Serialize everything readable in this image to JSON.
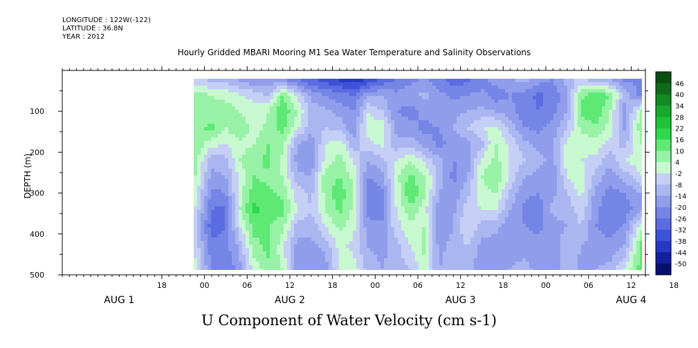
{
  "header": {
    "longitude": "LONGITUDE : 122W(-122)",
    "latitude": "LATITUDE : 36.8N",
    "year": "YEAR : 2012"
  },
  "chart_data": {
    "type": "heatmap",
    "title": "Hourly Gridded MBARI Mooring M1 Sea Water Temperature and Salinity Observations",
    "xlabel": "U Component of Water Velocity (cm s-1)",
    "ylabel": "DEPTH (m)",
    "ylim": [
      500,
      0
    ],
    "y_ticks": [
      100,
      200,
      300,
      400,
      500
    ],
    "y_tick_labels": [
      "100",
      "200",
      "300",
      "400",
      "500"
    ],
    "x_range_hours": [
      -12,
      60
    ],
    "x_hour_ticks": [
      {
        "h": -6,
        "label": "18"
      },
      {
        "h": 0,
        "label": "00"
      },
      {
        "h": 6,
        "label": "06"
      },
      {
        "h": 12,
        "label": "12"
      },
      {
        "h": 18,
        "label": "18"
      },
      {
        "h": 24,
        "label": "00"
      },
      {
        "h": 30,
        "label": "06"
      },
      {
        "h": 36,
        "label": "12"
      },
      {
        "h": 42,
        "label": "18"
      },
      {
        "h": 48,
        "label": "00"
      },
      {
        "h": 54,
        "label": "06"
      },
      {
        "h": 60,
        "label": "12"
      },
      {
        "h": 66,
        "label": "18"
      }
    ],
    "x_day_labels": [
      {
        "h": -12,
        "label": "AUG  1"
      },
      {
        "h": 12,
        "label": "AUG  2"
      },
      {
        "h": 36,
        "label": "AUG  3"
      },
      {
        "h": 60,
        "label": "AUG  4"
      }
    ],
    "x_axis_start_hour": -20,
    "x_axis_end_hour": 62,
    "data_extent": {
      "hour_start": -1.5,
      "hour_end": 61.5,
      "depth_top": 20,
      "depth_bottom": 488
    },
    "colorbar": {
      "levels": [
        46,
        40,
        34,
        28,
        22,
        16,
        10,
        4,
        -2,
        -8,
        -14,
        -20,
        -26,
        -32,
        -38,
        -44,
        -50
      ],
      "tick_labels": [
        "46",
        "40",
        "34",
        "28",
        "22",
        "16",
        "10",
        "4",
        "-2",
        "-8",
        "-14",
        "-20",
        "-26",
        "-32",
        "-38",
        "-44",
        "-50"
      ],
      "colors": [
        "#0a4d12",
        "#0f6b1c",
        "#138a24",
        "#17a82d",
        "#1ec436",
        "#2fd84a",
        "#5ee874",
        "#97f2a5",
        "#c8f8d0",
        "#c5cff5",
        "#a9b6f0",
        "#8f9deb",
        "#7585e6",
        "#5a6ce0",
        "#3d52d6",
        "#2638c4",
        "#14209e",
        "#08106e"
      ]
    },
    "field_columns": [
      {
        "h": -1.5,
        "values": [
          -2,
          14,
          10,
          14,
          16,
          14,
          12,
          10,
          6,
          2,
          4,
          8
        ]
      },
      {
        "h": 1,
        "values": [
          -4,
          10,
          12,
          18,
          6,
          -6,
          -10,
          -16,
          -20,
          -24,
          -18,
          -14
        ]
      },
      {
        "h": 3,
        "values": [
          -6,
          8,
          14,
          10,
          4,
          -4,
          -8,
          -14,
          -22,
          -20,
          -16,
          -20
        ]
      },
      {
        "h": 5,
        "values": [
          -10,
          4,
          10,
          16,
          8,
          10,
          6,
          8,
          10,
          4,
          -6,
          -10
        ]
      },
      {
        "h": 7,
        "values": [
          -14,
          2,
          6,
          6,
          10,
          14,
          16,
          20,
          24,
          18,
          14,
          6
        ]
      },
      {
        "h": 9,
        "values": [
          -12,
          -4,
          10,
          12,
          16,
          18,
          14,
          18,
          20,
          16,
          18,
          14
        ]
      },
      {
        "h": 11,
        "values": [
          -16,
          16,
          22,
          18,
          12,
          8,
          10,
          14,
          18,
          12,
          6,
          10
        ]
      },
      {
        "h": 13,
        "values": [
          -20,
          2,
          10,
          6,
          -8,
          -10,
          -6,
          2,
          4,
          -4,
          -10,
          -14
        ]
      },
      {
        "h": 15,
        "values": [
          -26,
          -10,
          -4,
          -6,
          -12,
          -14,
          -8,
          -4,
          -2,
          -6,
          -10,
          -12
        ]
      },
      {
        "h": 17,
        "values": [
          -30,
          -14,
          -6,
          -2,
          4,
          6,
          14,
          12,
          10,
          4,
          -6,
          -12
        ]
      },
      {
        "h": 19,
        "values": [
          -34,
          -18,
          -10,
          -4,
          8,
          12,
          16,
          20,
          18,
          12,
          6,
          4
        ]
      },
      {
        "h": 21,
        "values": [
          -38,
          -20,
          -14,
          -12,
          -6,
          4,
          8,
          10,
          8,
          6,
          2,
          8
        ]
      },
      {
        "h": 23,
        "values": [
          -32,
          -10,
          4,
          8,
          2,
          -8,
          -14,
          -20,
          -16,
          -12,
          -8,
          -4
        ]
      },
      {
        "h": 25,
        "values": [
          -26,
          -8,
          -2,
          8,
          6,
          -4,
          -10,
          -16,
          -18,
          -12,
          -10,
          -8
        ]
      },
      {
        "h": 27,
        "values": [
          -20,
          -12,
          -14,
          -10,
          -6,
          4,
          8,
          6,
          4,
          2,
          -4,
          -6
        ]
      },
      {
        "h": 29,
        "values": [
          -16,
          -10,
          -16,
          -12,
          -4,
          10,
          18,
          22,
          14,
          8,
          4,
          -2
        ]
      },
      {
        "h": 31,
        "values": [
          -14,
          -6,
          -12,
          -16,
          -10,
          2,
          10,
          12,
          6,
          10,
          12,
          8
        ]
      },
      {
        "h": 33,
        "values": [
          -18,
          -12,
          -8,
          -14,
          -16,
          -6,
          -4,
          -8,
          -12,
          -14,
          -10,
          -8
        ]
      },
      {
        "h": 35,
        "values": [
          -24,
          -16,
          -10,
          -8,
          -12,
          -14,
          -16,
          -12,
          -10,
          -8,
          -6,
          -4
        ]
      },
      {
        "h": 37,
        "values": [
          -22,
          -14,
          -8,
          -2,
          -10,
          -12,
          -8,
          -4,
          2,
          4,
          -2,
          -6
        ]
      },
      {
        "h": 39,
        "values": [
          -18,
          -12,
          -6,
          4,
          -4,
          6,
          10,
          8,
          4,
          -4,
          -10,
          -12
        ]
      },
      {
        "h": 41,
        "values": [
          -10,
          -18,
          -8,
          6,
          10,
          12,
          16,
          10,
          4,
          -6,
          -12,
          -14
        ]
      },
      {
        "h": 43,
        "values": [
          -8,
          -14,
          -12,
          -4,
          2,
          4,
          2,
          -4,
          -8,
          -12,
          -10,
          -8
        ]
      },
      {
        "h": 45,
        "values": [
          -6,
          -16,
          -18,
          -14,
          -6,
          -2,
          -8,
          -12,
          -16,
          -14,
          -10,
          -6
        ]
      },
      {
        "h": 47,
        "values": [
          -10,
          -22,
          -20,
          -16,
          -10,
          -6,
          -10,
          -14,
          -18,
          -16,
          -12,
          -10
        ]
      },
      {
        "h": 49,
        "values": [
          -14,
          -18,
          -16,
          -12,
          -8,
          -10,
          -14,
          -10,
          -6,
          -10,
          -12,
          -14
        ]
      },
      {
        "h": 51,
        "values": [
          -4,
          -10,
          -8,
          -2,
          6,
          8,
          4,
          -2,
          -6,
          -8,
          -4,
          -2
        ]
      },
      {
        "h": 53,
        "values": [
          -2,
          14,
          18,
          12,
          6,
          4,
          8,
          6,
          2,
          -2,
          -8,
          -10
        ]
      },
      {
        "h": 55,
        "values": [
          -6,
          20,
          22,
          14,
          8,
          2,
          -4,
          -10,
          -12,
          -14,
          -10,
          -8
        ]
      },
      {
        "h": 57,
        "values": [
          -10,
          16,
          10,
          8,
          2,
          -6,
          -12,
          -16,
          -20,
          -18,
          -12,
          -6
        ]
      },
      {
        "h": 59,
        "values": [
          -16,
          -4,
          -12,
          -10,
          -4,
          4,
          -6,
          -14,
          -18,
          -14,
          -8,
          4
        ]
      },
      {
        "h": 61.5,
        "values": [
          -14,
          -18,
          12,
          16,
          10,
          8,
          4,
          -8,
          -10,
          8,
          18,
          20
        ]
      }
    ],
    "field_depths": [
      20,
      60,
      100,
      140,
      180,
      220,
      260,
      300,
      340,
      380,
      430,
      488
    ]
  }
}
